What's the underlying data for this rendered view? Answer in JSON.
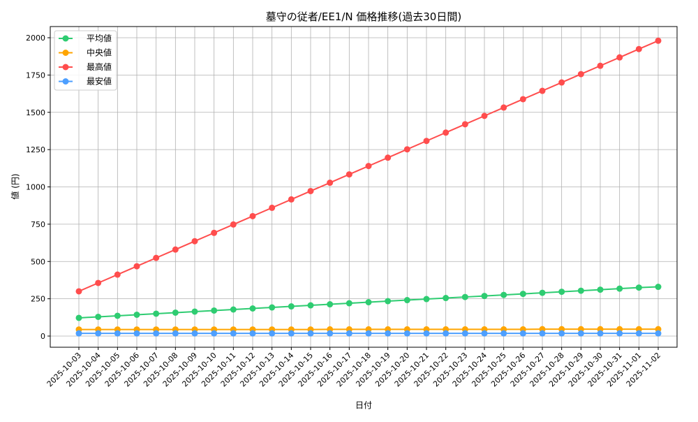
{
  "chart_data": {
    "type": "line",
    "title": "墓守の従者/EE1/N 価格推移(過去30日間)",
    "xlabel": "日付",
    "ylabel": "値 (円)",
    "ylim": [
      -75,
      2070
    ],
    "yticks": [
      0,
      250,
      500,
      750,
      1000,
      1250,
      1500,
      1750,
      2000
    ],
    "grid": true,
    "legend": "top-left",
    "categories": [
      "2025-10-03",
      "2025-10-04",
      "2025-10-05",
      "2025-10-06",
      "2025-10-07",
      "2025-10-08",
      "2025-10-09",
      "2025-10-10",
      "2025-10-11",
      "2025-10-12",
      "2025-10-13",
      "2025-10-14",
      "2025-10-15",
      "2025-10-16",
      "2025-10-17",
      "2025-10-18",
      "2025-10-19",
      "2025-10-20",
      "2025-10-21",
      "2025-10-22",
      "2025-10-23",
      "2025-10-24",
      "2025-10-25",
      "2025-10-26",
      "2025-10-27",
      "2025-10-28",
      "2025-10-29",
      "2025-10-30",
      "2025-10-31",
      "2025-11-01",
      "2025-11-02"
    ],
    "series": [
      {
        "name": "平均値",
        "color": "#2ecc71",
        "values": [
          122,
          129,
          136,
          143,
          150,
          157,
          164,
          171,
          178,
          185,
          192,
          199,
          206,
          213,
          220,
          227,
          234,
          241,
          248,
          255,
          262,
          269,
          276,
          283,
          290,
          297,
          304,
          311,
          318,
          325,
          330
        ]
      },
      {
        "name": "中央値",
        "color": "#ffa500",
        "values": [
          44,
          44,
          44,
          44,
          44,
          44,
          44,
          44,
          44,
          44,
          44,
          44,
          44,
          45,
          45,
          45,
          45,
          45,
          45,
          45,
          45,
          45,
          45,
          45,
          46,
          46,
          46,
          46,
          46,
          46,
          46
        ]
      },
      {
        "name": "最高値",
        "color": "#ff4d4d",
        "values": [
          300,
          356,
          412,
          468,
          524,
          580,
          636,
          692,
          748,
          804,
          860,
          916,
          972,
          1028,
          1084,
          1140,
          1196,
          1252,
          1308,
          1364,
          1420,
          1476,
          1532,
          1588,
          1644,
          1700,
          1756,
          1812,
          1868,
          1924,
          1980
        ]
      },
      {
        "name": "最安値",
        "color": "#4d9fff",
        "values": [
          18,
          18,
          18,
          18,
          18,
          18,
          18,
          18,
          18,
          18,
          18,
          18,
          18,
          18,
          18,
          18,
          18,
          18,
          18,
          18,
          18,
          18,
          18,
          18,
          18,
          18,
          18,
          18,
          18,
          18,
          18
        ]
      }
    ]
  }
}
